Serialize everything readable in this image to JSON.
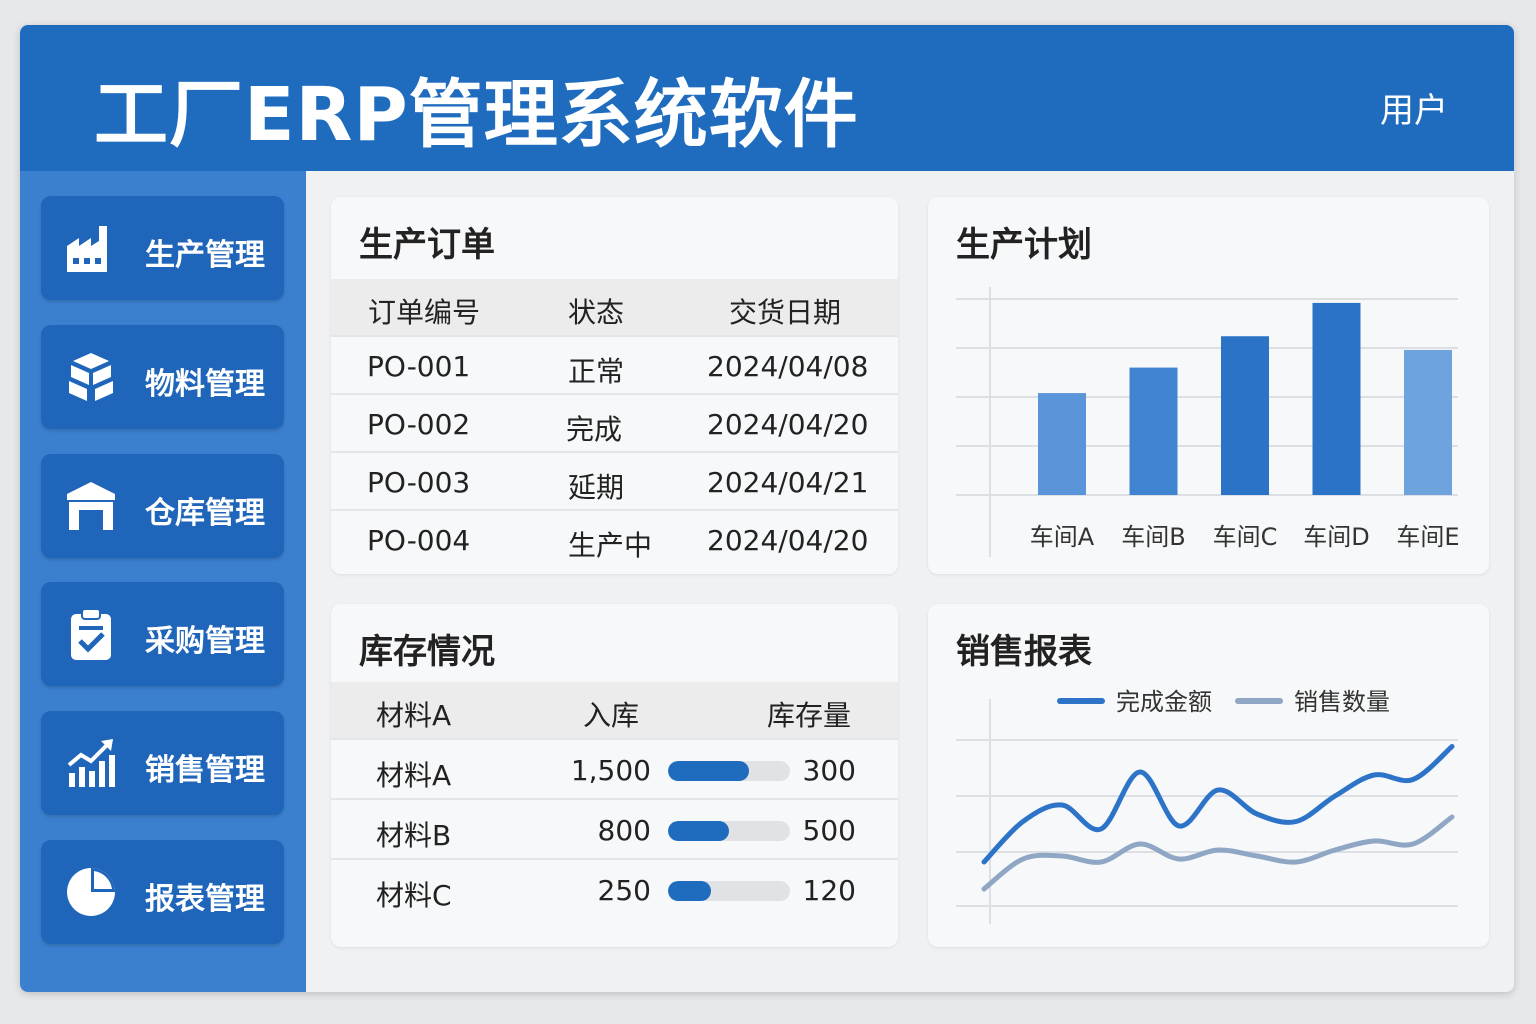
{
  "header": {
    "title": "工厂ERP管理系统软件",
    "user": "用户"
  },
  "sidebar": {
    "items": [
      {
        "label": "生产管理",
        "icon": "factory-icon"
      },
      {
        "label": "物料管理",
        "icon": "boxes-icon"
      },
      {
        "label": "仓库管理",
        "icon": "warehouse-icon"
      },
      {
        "label": "采购管理",
        "icon": "clipboard-check-icon"
      },
      {
        "label": "销售管理",
        "icon": "trend-chart-icon"
      },
      {
        "label": "报表管理",
        "icon": "pie-chart-icon"
      }
    ]
  },
  "orders": {
    "title": "生产订单",
    "columns": [
      "订单编号",
      "状态",
      "交货日期"
    ],
    "rows": [
      {
        "id": "PO-001",
        "status": "正常",
        "date": "2024/04/08"
      },
      {
        "id": "PO-002",
        "status": "完成",
        "date": "2024/04/20"
      },
      {
        "id": "PO-003",
        "status": "延期",
        "date": "2024/04/21"
      },
      {
        "id": "PO-004",
        "status": "生产中",
        "date": "2024/04/20"
      }
    ]
  },
  "inventory": {
    "title": "库存情况",
    "columns": [
      "材料A",
      "入库",
      "库存量"
    ],
    "rows": [
      {
        "name": "材料A",
        "qty": "1,500",
        "level": 0.66,
        "stock": "300"
      },
      {
        "name": "材料B",
        "qty": "800",
        "level": 0.5,
        "stock": "500"
      },
      {
        "name": "材料C",
        "qty": "250",
        "level": 0.35,
        "stock": "120"
      }
    ]
  },
  "plan": {
    "title": "生产计划"
  },
  "sales": {
    "title": "销售报表"
  },
  "colors": {
    "header": "#1f6cbf",
    "sidebar": "#3b80cf",
    "nav_item": "#1f66ba",
    "accent": "#1f6cbf",
    "line_secondary": "#8fa6c4"
  },
  "chart_data": [
    {
      "type": "bar",
      "categories": [
        "车间A",
        "车间B",
        "车间C",
        "车间D",
        "车间E"
      ],
      "values": [
        52,
        65,
        81,
        98,
        74
      ],
      "ylim": [
        0,
        100
      ],
      "grid": true,
      "colors": [
        "#5995d8",
        "#3f83d1",
        "#2a73c7",
        "#2a73c7",
        "#6fa3dd"
      ]
    },
    {
      "type": "line",
      "x": [
        0,
        1,
        2,
        3,
        4,
        5,
        6,
        7,
        8,
        9,
        10,
        11,
        12
      ],
      "series": [
        {
          "name": "完成金额",
          "values": [
            28,
            55,
            66,
            50,
            88,
            52,
            76,
            60,
            55,
            72,
            86,
            83,
            105
          ]
        },
        {
          "name": "销售数量",
          "values": [
            10,
            30,
            32,
            28,
            40,
            30,
            36,
            32,
            28,
            36,
            42,
            40,
            58
          ]
        }
      ],
      "ylim": [
        0,
        120
      ],
      "grid": true,
      "legend": "top",
      "colors": [
        "#2d74c9",
        "#8fa6c4"
      ]
    }
  ]
}
